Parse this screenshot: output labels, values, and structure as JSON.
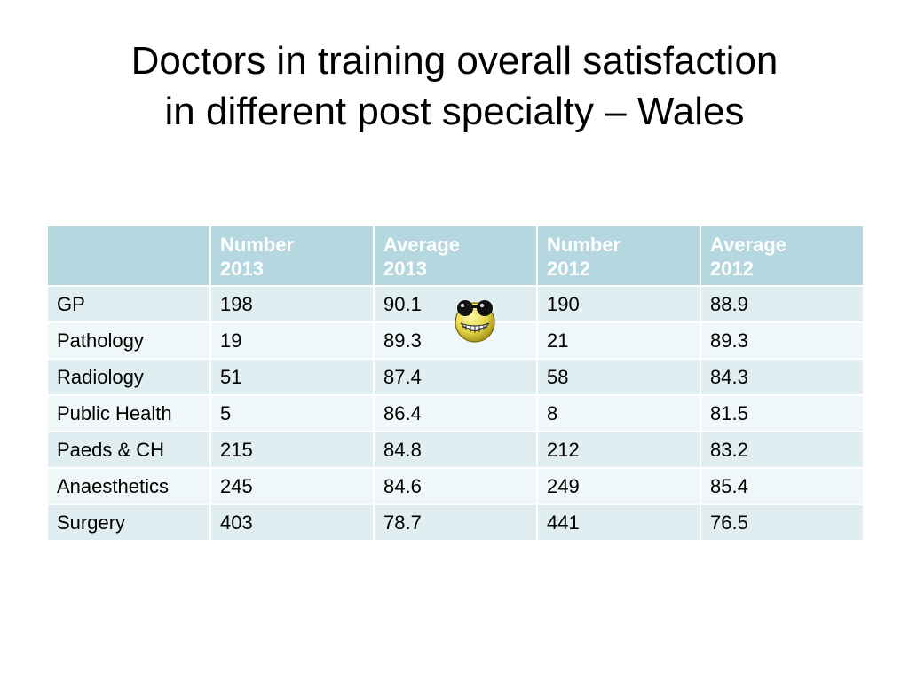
{
  "slide": {
    "title_line1": "Doctors in training overall satisfaction",
    "title_line2": "in different post specialty – Wales"
  },
  "table": {
    "headers": [
      {
        "line1": "",
        "line2": ""
      },
      {
        "line1": "Number",
        "line2": "2013"
      },
      {
        "line1": "Average",
        "line2": "2013"
      },
      {
        "line1": "Number",
        "line2": "2012"
      },
      {
        "line1": "Average",
        "line2": "2012"
      }
    ],
    "rows": [
      [
        "GP",
        "198",
        "90.1",
        "190",
        "88.9"
      ],
      [
        "Pathology",
        "19",
        "89.3",
        "21",
        "89.3"
      ],
      [
        "Radiology",
        "51",
        "87.4",
        "58",
        "84.3"
      ],
      [
        "Public Health",
        "5",
        "86.4",
        "8",
        "81.5"
      ],
      [
        "Paeds & CH",
        "215",
        "84.8",
        "212",
        "83.2"
      ],
      [
        "Anaesthetics",
        "245",
        "84.6",
        "249",
        "85.4"
      ],
      [
        "Surgery",
        "403",
        "78.7",
        "441",
        "76.5"
      ]
    ]
  },
  "colors": {
    "header_bg": "#b5d8e0",
    "row_odd": "#e0eef1",
    "row_even": "#f0f7f8"
  },
  "icons": {
    "smiley": "grinning-sunglasses-smiley-icon"
  }
}
